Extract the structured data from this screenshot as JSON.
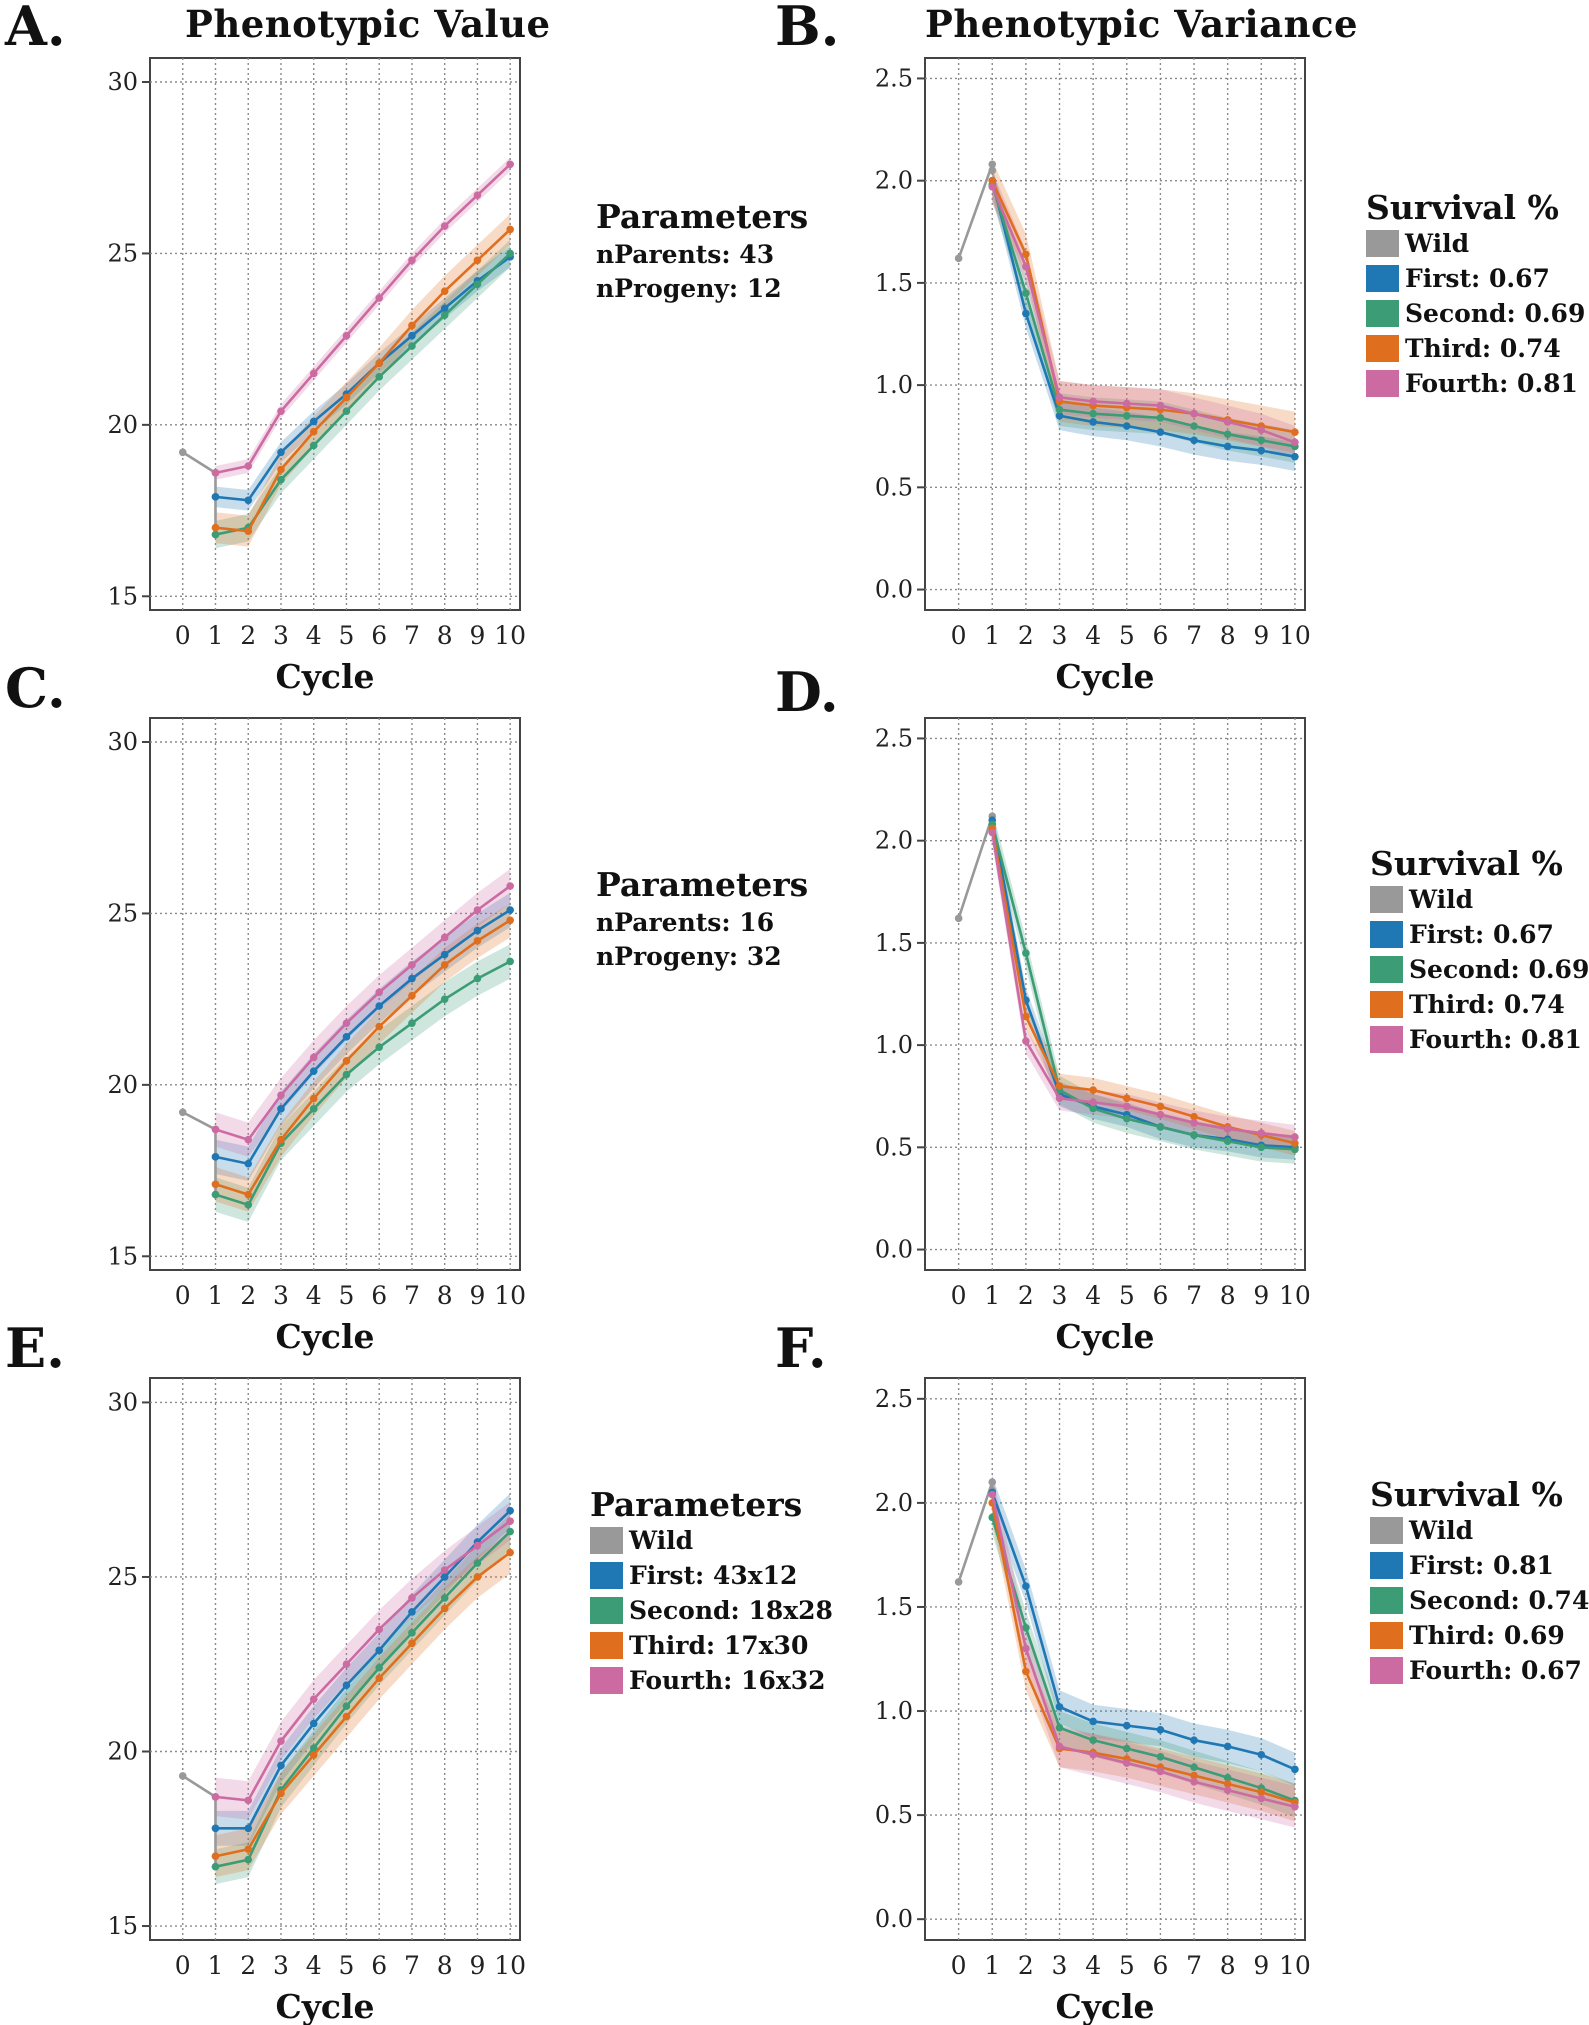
{
  "titles": {
    "left": "Phenotypic Value",
    "right": "Phenotypic Variance"
  },
  "series_colors": {
    "Wild": "#999999",
    "First": "#1f77b4",
    "Second": "#3c9c76",
    "Third": "#df6f1e",
    "Fourth": "#cc6aa2"
  },
  "chart_data": [
    {
      "panel": "A.",
      "type": "line",
      "title": "Phenotypic Value",
      "xlabel": "Cycle",
      "ylabel": "",
      "xlim": [
        -1,
        10.3
      ],
      "ylim": [
        14.6,
        30.7
      ],
      "yticks": [
        15,
        20,
        25,
        30
      ],
      "grid": true,
      "x": [
        0,
        1,
        2,
        3,
        4,
        5,
        6,
        7,
        8,
        9,
        10
      ],
      "series": [
        {
          "name": "Wild",
          "x": [
            0,
            1,
            1,
            1,
            1
          ],
          "values": [
            19.2,
            18.6,
            17.9,
            17.0,
            16.8
          ],
          "band": 0
        },
        {
          "name": "First",
          "x": [
            1,
            2,
            3,
            4,
            5,
            6,
            7,
            8,
            9,
            10
          ],
          "values": [
            17.9,
            17.8,
            19.2,
            20.1,
            20.9,
            21.8,
            22.6,
            23.4,
            24.2,
            24.9
          ],
          "band": 0.3
        },
        {
          "name": "Second",
          "x": [
            1,
            2,
            3,
            4,
            5,
            6,
            7,
            8,
            9,
            10
          ],
          "values": [
            16.8,
            17.0,
            18.4,
            19.4,
            20.4,
            21.4,
            22.3,
            23.2,
            24.1,
            25.0
          ],
          "band": 0.4
        },
        {
          "name": "Third",
          "x": [
            1,
            2,
            3,
            4,
            5,
            6,
            7,
            8,
            9,
            10
          ],
          "values": [
            17.0,
            16.9,
            18.7,
            19.8,
            20.8,
            21.8,
            22.9,
            23.9,
            24.8,
            25.7
          ],
          "band": 0.45
        },
        {
          "name": "Fourth",
          "x": [
            1,
            2,
            3,
            4,
            5,
            6,
            7,
            8,
            9,
            10
          ],
          "values": [
            18.6,
            18.8,
            20.4,
            21.5,
            22.6,
            23.7,
            24.8,
            25.8,
            26.7,
            27.6
          ],
          "band": 0.2
        }
      ],
      "side": {
        "kind": "params",
        "title": "Parameters",
        "lines": [
          "nParents: 43",
          "nProgeny: 12"
        ]
      }
    },
    {
      "panel": "B.",
      "type": "line",
      "title": "Phenotypic Variance",
      "xlabel": "Cycle",
      "ylabel": "",
      "xlim": [
        -1,
        10.3
      ],
      "ylim": [
        -0.1,
        2.6
      ],
      "yticks": [
        0.0,
        0.5,
        1.0,
        1.5,
        2.0,
        2.5
      ],
      "grid": true,
      "x": [
        0,
        1,
        2,
        3,
        4,
        5,
        6,
        7,
        8,
        9,
        10
      ],
      "series": [
        {
          "name": "Wild",
          "x": [
            0,
            1,
            1
          ],
          "values": [
            1.62,
            2.08,
            2.05
          ],
          "band": 0
        },
        {
          "name": "First",
          "x": [
            1,
            2,
            3,
            4,
            5,
            6,
            7,
            8,
            9,
            10
          ],
          "values": [
            2.0,
            1.35,
            0.85,
            0.82,
            0.8,
            0.77,
            0.73,
            0.7,
            0.68,
            0.65
          ],
          "band": 0.07
        },
        {
          "name": "Second",
          "x": [
            1,
            2,
            3,
            4,
            5,
            6,
            7,
            8,
            9,
            10
          ],
          "values": [
            1.98,
            1.45,
            0.88,
            0.86,
            0.85,
            0.84,
            0.8,
            0.76,
            0.73,
            0.7
          ],
          "band": 0.08
        },
        {
          "name": "Third",
          "x": [
            1,
            2,
            3,
            4,
            5,
            6,
            7,
            8,
            9,
            10
          ],
          "values": [
            2.0,
            1.64,
            0.92,
            0.9,
            0.89,
            0.88,
            0.86,
            0.83,
            0.8,
            0.77
          ],
          "band": 0.1
        },
        {
          "name": "Fourth",
          "x": [
            1,
            2,
            3,
            4,
            5,
            6,
            7,
            8,
            9,
            10
          ],
          "values": [
            1.97,
            1.58,
            0.94,
            0.92,
            0.91,
            0.9,
            0.86,
            0.82,
            0.78,
            0.72
          ],
          "band": 0.08
        }
      ],
      "side": {
        "kind": "legend",
        "title": "Survival %",
        "items": [
          {
            "series": "Wild",
            "label": "Wild"
          },
          {
            "series": "First",
            "label": "First: 0.67"
          },
          {
            "series": "Second",
            "label": "Second: 0.69"
          },
          {
            "series": "Third",
            "label": "Third: 0.74"
          },
          {
            "series": "Fourth",
            "label": "Fourth: 0.81"
          }
        ]
      }
    },
    {
      "panel": "C.",
      "type": "line",
      "title": "",
      "xlabel": "Cycle",
      "ylabel": "",
      "xlim": [
        -1,
        10.3
      ],
      "ylim": [
        14.6,
        30.7
      ],
      "yticks": [
        15,
        20,
        25,
        30
      ],
      "grid": true,
      "x": [
        0,
        1,
        2,
        3,
        4,
        5,
        6,
        7,
        8,
        9,
        10
      ],
      "series": [
        {
          "name": "Wild",
          "x": [
            0,
            1,
            1,
            1,
            1
          ],
          "values": [
            19.2,
            18.7,
            17.9,
            17.1,
            16.8
          ],
          "band": 0
        },
        {
          "name": "First",
          "x": [
            1,
            2,
            3,
            4,
            5,
            6,
            7,
            8,
            9,
            10
          ],
          "values": [
            17.9,
            17.7,
            19.3,
            20.4,
            21.4,
            22.3,
            23.1,
            23.8,
            24.5,
            25.1
          ],
          "band": 0.5
        },
        {
          "name": "Second",
          "x": [
            1,
            2,
            3,
            4,
            5,
            6,
            7,
            8,
            9,
            10
          ],
          "values": [
            16.8,
            16.5,
            18.3,
            19.3,
            20.3,
            21.1,
            21.8,
            22.5,
            23.1,
            23.6
          ],
          "band": 0.5
        },
        {
          "name": "Third",
          "x": [
            1,
            2,
            3,
            4,
            5,
            6,
            7,
            8,
            9,
            10
          ],
          "values": [
            17.1,
            16.8,
            18.4,
            19.6,
            20.7,
            21.7,
            22.6,
            23.5,
            24.2,
            24.8
          ],
          "band": 0.5
        },
        {
          "name": "Fourth",
          "x": [
            1,
            2,
            3,
            4,
            5,
            6,
            7,
            8,
            9,
            10
          ],
          "values": [
            18.7,
            18.4,
            19.7,
            20.8,
            21.8,
            22.7,
            23.5,
            24.3,
            25.1,
            25.8
          ],
          "band": 0.5
        }
      ],
      "side": {
        "kind": "params",
        "title": "Parameters",
        "lines": [
          "nParents: 16",
          "nProgeny: 32"
        ]
      }
    },
    {
      "panel": "D.",
      "type": "line",
      "title": "",
      "xlabel": "Cycle",
      "ylabel": "",
      "xlim": [
        -1,
        10.3
      ],
      "ylim": [
        -0.1,
        2.6
      ],
      "yticks": [
        0.0,
        0.5,
        1.0,
        1.5,
        2.0,
        2.5
      ],
      "grid": true,
      "x": [
        0,
        1,
        2,
        3,
        4,
        5,
        6,
        7,
        8,
        9,
        10
      ],
      "series": [
        {
          "name": "Wild",
          "x": [
            0,
            1,
            1
          ],
          "values": [
            1.62,
            2.12,
            2.08
          ],
          "band": 0
        },
        {
          "name": "First",
          "x": [
            1,
            2,
            3,
            4,
            5,
            6,
            7,
            8,
            9,
            10
          ],
          "values": [
            2.1,
            1.22,
            0.76,
            0.7,
            0.66,
            0.6,
            0.56,
            0.54,
            0.51,
            0.5
          ],
          "band": 0.06
        },
        {
          "name": "Second",
          "x": [
            1,
            2,
            3,
            4,
            5,
            6,
            7,
            8,
            9,
            10
          ],
          "values": [
            2.08,
            1.45,
            0.78,
            0.69,
            0.64,
            0.6,
            0.56,
            0.53,
            0.5,
            0.49
          ],
          "band": 0.07
        },
        {
          "name": "Third",
          "x": [
            1,
            2,
            3,
            4,
            5,
            6,
            7,
            8,
            9,
            10
          ],
          "values": [
            2.06,
            1.14,
            0.8,
            0.78,
            0.74,
            0.7,
            0.65,
            0.6,
            0.56,
            0.52
          ],
          "band": 0.06
        },
        {
          "name": "Fourth",
          "x": [
            1,
            2,
            3,
            4,
            5,
            6,
            7,
            8,
            9,
            10
          ],
          "values": [
            2.04,
            1.02,
            0.74,
            0.72,
            0.7,
            0.66,
            0.62,
            0.59,
            0.57,
            0.55
          ],
          "band": 0.06
        }
      ],
      "side": {
        "kind": "legend",
        "title": "Survival %",
        "items": [
          {
            "series": "Wild",
            "label": "Wild"
          },
          {
            "series": "First",
            "label": "First: 0.67"
          },
          {
            "series": "Second",
            "label": "Second: 0.69"
          },
          {
            "series": "Third",
            "label": "Third: 0.74"
          },
          {
            "series": "Fourth",
            "label": "Fourth: 0.81"
          }
        ]
      }
    },
    {
      "panel": "E.",
      "type": "line",
      "title": "",
      "xlabel": "Cycle",
      "ylabel": "",
      "xlim": [
        -1,
        10.3
      ],
      "ylim": [
        14.6,
        30.7
      ],
      "yticks": [
        15,
        20,
        25,
        30
      ],
      "grid": true,
      "x": [
        0,
        1,
        2,
        3,
        4,
        5,
        6,
        7,
        8,
        9,
        10
      ],
      "series": [
        {
          "name": "Wild",
          "x": [
            0,
            1,
            1,
            1,
            1
          ],
          "values": [
            19.3,
            18.7,
            17.8,
            17.0,
            16.7
          ],
          "band": 0
        },
        {
          "name": "First",
          "x": [
            1,
            2,
            3,
            4,
            5,
            6,
            7,
            8,
            9,
            10
          ],
          "values": [
            17.8,
            17.8,
            19.6,
            20.8,
            21.9,
            22.9,
            24.0,
            25.0,
            26.0,
            26.9
          ],
          "band": 0.5
        },
        {
          "name": "Second",
          "x": [
            1,
            2,
            3,
            4,
            5,
            6,
            7,
            8,
            9,
            10
          ],
          "values": [
            16.7,
            16.9,
            18.9,
            20.1,
            21.3,
            22.4,
            23.4,
            24.4,
            25.4,
            26.3
          ],
          "band": 0.5
        },
        {
          "name": "Third",
          "x": [
            1,
            2,
            3,
            4,
            5,
            6,
            7,
            8,
            9,
            10
          ],
          "values": [
            17.0,
            17.2,
            18.8,
            19.9,
            21.0,
            22.1,
            23.1,
            24.1,
            25.0,
            25.7
          ],
          "band": 0.6
        },
        {
          "name": "Fourth",
          "x": [
            1,
            2,
            3,
            4,
            5,
            6,
            7,
            8,
            9,
            10
          ],
          "values": [
            18.7,
            18.6,
            20.3,
            21.5,
            22.5,
            23.5,
            24.4,
            25.2,
            25.9,
            26.6
          ],
          "band": 0.55
        }
      ],
      "side": {
        "kind": "legend",
        "title": "Parameters",
        "items": [
          {
            "series": "Wild",
            "label": "Wild"
          },
          {
            "series": "First",
            "label": "First: 43x12"
          },
          {
            "series": "Second",
            "label": "Second: 18x28"
          },
          {
            "series": "Third",
            "label": "Third: 17x30"
          },
          {
            "series": "Fourth",
            "label": "Fourth: 16x32"
          }
        ]
      }
    },
    {
      "panel": "F.",
      "type": "line",
      "title": "",
      "xlabel": "Cycle",
      "ylabel": "",
      "xlim": [
        -1,
        10.3
      ],
      "ylim": [
        -0.1,
        2.6
      ],
      "yticks": [
        0.0,
        0.5,
        1.0,
        1.5,
        2.0,
        2.5
      ],
      "grid": true,
      "x": [
        0,
        1,
        2,
        3,
        4,
        5,
        6,
        7,
        8,
        9,
        10
      ],
      "series": [
        {
          "name": "Wild",
          "x": [
            0,
            1,
            1
          ],
          "values": [
            1.62,
            2.1,
            2.06
          ],
          "band": 0
        },
        {
          "name": "First",
          "x": [
            1,
            2,
            3,
            4,
            5,
            6,
            7,
            8,
            9,
            10
          ],
          "values": [
            2.05,
            1.6,
            1.02,
            0.95,
            0.93,
            0.91,
            0.86,
            0.83,
            0.79,
            0.72
          ],
          "band": 0.08
        },
        {
          "name": "Second",
          "x": [
            1,
            2,
            3,
            4,
            5,
            6,
            7,
            8,
            9,
            10
          ],
          "values": [
            1.93,
            1.4,
            0.92,
            0.86,
            0.82,
            0.78,
            0.73,
            0.68,
            0.63,
            0.57
          ],
          "band": 0.08
        },
        {
          "name": "Third",
          "x": [
            1,
            2,
            3,
            4,
            5,
            6,
            7,
            8,
            9,
            10
          ],
          "values": [
            2.0,
            1.19,
            0.82,
            0.8,
            0.77,
            0.73,
            0.69,
            0.65,
            0.61,
            0.56
          ],
          "band": 0.09
        },
        {
          "name": "Fourth",
          "x": [
            1,
            2,
            3,
            4,
            5,
            6,
            7,
            8,
            9,
            10
          ],
          "values": [
            2.04,
            1.3,
            0.83,
            0.79,
            0.75,
            0.71,
            0.66,
            0.62,
            0.58,
            0.54
          ],
          "band": 0.1
        }
      ],
      "side": {
        "kind": "legend",
        "title": "Survival %",
        "items": [
          {
            "series": "Wild",
            "label": "Wild"
          },
          {
            "series": "First",
            "label": "First: 0.81"
          },
          {
            "series": "Second",
            "label": "Second: 0.74"
          },
          {
            "series": "Third",
            "label": "Third: 0.69"
          },
          {
            "series": "Fourth",
            "label": "Fourth: 0.67"
          }
        ]
      }
    }
  ]
}
